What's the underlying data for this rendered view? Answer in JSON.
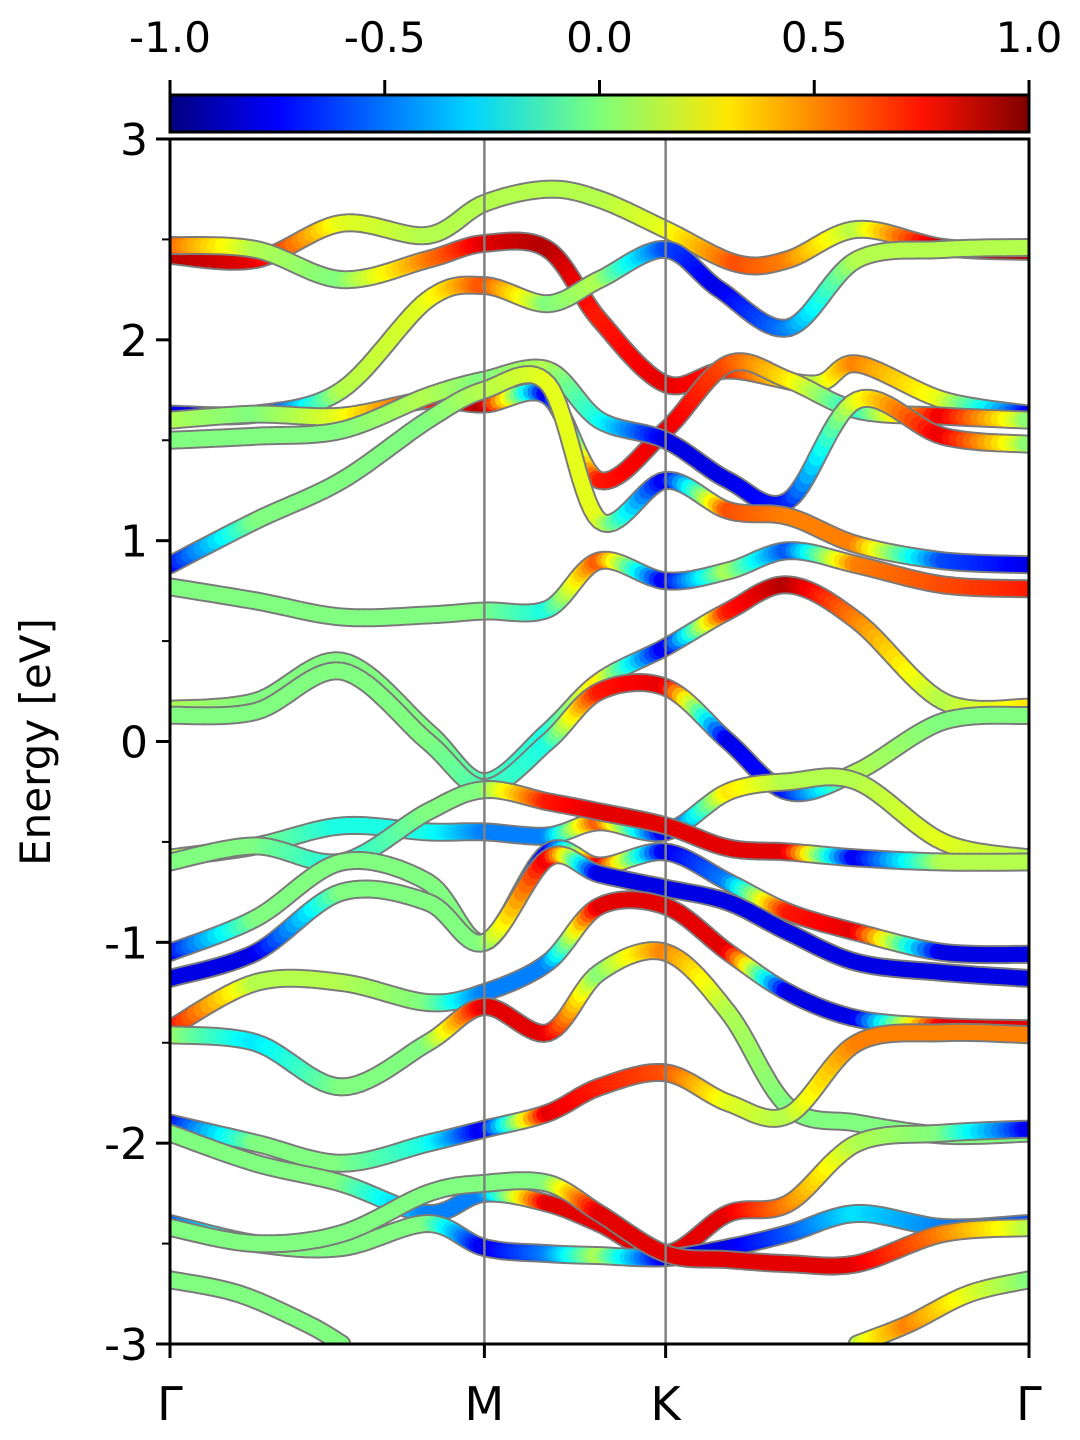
{
  "chart_data": {
    "type": "line",
    "title": "",
    "ylabel": "Energy [eV]",
    "xlabel": "",
    "ylim": [
      -3,
      3
    ],
    "yticks": [
      {
        "value": 3,
        "label": "3"
      },
      {
        "value": 2,
        "label": "2"
      },
      {
        "value": 1,
        "label": "1"
      },
      {
        "value": 0,
        "label": "0"
      },
      {
        "value": -1,
        "label": "-1"
      },
      {
        "value": -2,
        "label": "-2"
      },
      {
        "value": -3,
        "label": "-3"
      }
    ],
    "yminor": [
      2.5,
      1.5,
      0.5,
      -0.5,
      -1.5,
      -2.5
    ],
    "xrange": [
      0,
      1
    ],
    "kpoints": [
      {
        "label": "Γ",
        "x": 0.0
      },
      {
        "label": "M",
        "x": 0.366
      },
      {
        "label": "K",
        "x": 0.577
      },
      {
        "label": "Γ",
        "x": 1.0
      }
    ],
    "colorbar": {
      "range": [
        -1.0,
        1.0
      ],
      "tick_labels": [
        "-1.0",
        "-0.5",
        "0.0",
        "0.5",
        "1.0"
      ],
      "tick_values": [
        -1.0,
        -0.5,
        0.0,
        0.5,
        1.0
      ],
      "colormap": "jet",
      "placement": "top"
    },
    "grid": false,
    "series": [
      {
        "x": [
          0,
          0.1,
          0.2,
          0.3,
          0.366,
          0.44,
          0.5,
          0.577,
          0.66,
          0.72,
          0.8,
          0.9,
          1.0
        ],
        "y": [
          2.42,
          2.4,
          2.58,
          2.52,
          2.68,
          2.75,
          2.7,
          2.55,
          2.38,
          2.4,
          2.55,
          2.46,
          2.44
        ],
        "w": [
          0.9,
          0.8,
          0.2,
          0.1,
          0.1,
          0.1,
          0.1,
          0.2,
          0.6,
          0.5,
          0.1,
          0.9,
          0.9
        ]
      },
      {
        "x": [
          0,
          0.1,
          0.2,
          0.3,
          0.366,
          0.44,
          0.5,
          0.577,
          0.65,
          0.75,
          0.8,
          0.9,
          1.0
        ],
        "y": [
          2.47,
          2.45,
          2.3,
          2.4,
          2.48,
          2.45,
          2.1,
          1.78,
          1.85,
          1.78,
          1.88,
          1.7,
          1.63
        ],
        "w": [
          0.6,
          0.1,
          0.0,
          0.5,
          0.8,
          0.9,
          0.7,
          0.8,
          0.7,
          0.1,
          0.5,
          0.2,
          -0.8
        ]
      },
      {
        "x": [
          0,
          0.1,
          0.2,
          0.3,
          0.366,
          0.44,
          0.5,
          0.577,
          0.64,
          0.72,
          0.8,
          0.9,
          1.0
        ],
        "y": [
          1.63,
          1.63,
          1.75,
          2.2,
          2.27,
          2.18,
          2.3,
          2.45,
          2.25,
          2.06,
          2.4,
          2.45,
          2.46
        ],
        "w": [
          -0.8,
          -0.8,
          0.1,
          0.2,
          0.6,
          0.0,
          0.1,
          -0.6,
          -0.8,
          -0.5,
          0.1,
          0.1,
          0.1
        ]
      },
      {
        "x": [
          0,
          0.1,
          0.2,
          0.3,
          0.366,
          0.44,
          0.5,
          0.577,
          0.65,
          0.72,
          0.8,
          0.9,
          1.0
        ],
        "y": [
          1.6,
          1.63,
          1.62,
          1.7,
          1.68,
          1.72,
          1.3,
          1.55,
          1.88,
          1.8,
          1.65,
          1.62,
          1.6
        ],
        "w": [
          0.1,
          0.0,
          0.2,
          0.7,
          0.9,
          -0.8,
          0.7,
          0.8,
          0.6,
          0.3,
          -0.2,
          0.8,
          0.0
        ]
      },
      {
        "x": [
          0,
          0.1,
          0.2,
          0.3,
          0.366,
          0.44,
          0.5,
          0.577,
          0.65,
          0.72,
          0.8,
          0.9,
          1.0
        ],
        "y": [
          1.5,
          1.52,
          1.55,
          1.72,
          1.8,
          1.85,
          1.6,
          1.5,
          1.3,
          1.2,
          1.7,
          1.52,
          1.48
        ],
        "w": [
          0.0,
          0.0,
          0.0,
          0.1,
          0.0,
          0.1,
          -0.2,
          -0.8,
          -0.8,
          -0.7,
          0.2,
          0.8,
          0.0
        ]
      },
      {
        "x": [
          0,
          0.1,
          0.2,
          0.3,
          0.366,
          0.44,
          0.5,
          0.577,
          0.65,
          0.72,
          0.8,
          0.9,
          1.0
        ],
        "y": [
          0.88,
          1.1,
          1.3,
          1.6,
          1.75,
          1.78,
          1.1,
          1.3,
          1.15,
          1.12,
          0.98,
          0.9,
          0.88
        ],
        "w": [
          -0.8,
          0.0,
          0.0,
          0.0,
          0.1,
          0.2,
          0.2,
          -0.8,
          0.6,
          0.5,
          0.5,
          -0.6,
          -0.8
        ]
      },
      {
        "x": [
          0,
          0.1,
          0.2,
          0.3,
          0.366,
          0.44,
          0.5,
          0.577,
          0.65,
          0.72,
          0.8,
          0.9,
          1.0
        ],
        "y": [
          0.77,
          0.7,
          0.62,
          0.63,
          0.65,
          0.66,
          0.9,
          0.8,
          0.85,
          0.95,
          0.88,
          0.78,
          0.76
        ],
        "w": [
          0.0,
          0.0,
          0.0,
          0.0,
          0.0,
          -0.2,
          0.6,
          -0.8,
          0.1,
          -0.6,
          0.5,
          0.6,
          0.7
        ]
      },
      {
        "x": [
          0,
          0.1,
          0.2,
          0.3,
          0.366,
          0.44,
          0.5,
          0.577,
          0.65,
          0.72,
          0.8,
          0.9,
          1.0
        ],
        "y": [
          0.16,
          0.2,
          0.4,
          0.05,
          -0.2,
          0.05,
          0.3,
          0.47,
          0.65,
          0.78,
          0.6,
          0.2,
          0.17
        ],
        "w": [
          0.1,
          0.0,
          0.0,
          0.0,
          -0.1,
          -0.2,
          0.3,
          -0.8,
          0.7,
          0.9,
          0.5,
          0.1,
          0.3
        ]
      },
      {
        "x": [
          0,
          0.1,
          0.2,
          0.3,
          0.366,
          0.44,
          0.5,
          0.577,
          0.65,
          0.72,
          0.8,
          0.9,
          1.0
        ],
        "y": [
          0.13,
          0.15,
          0.35,
          0.0,
          -0.23,
          0.0,
          0.25,
          0.27,
          0.0,
          -0.25,
          -0.15,
          0.1,
          0.13
        ],
        "w": [
          0.0,
          0.0,
          0.0,
          0.0,
          -0.1,
          -0.2,
          0.7,
          0.8,
          -0.8,
          -0.7,
          0.1,
          0.0,
          0.0
        ]
      },
      {
        "x": [
          0,
          0.1,
          0.2,
          0.3,
          0.366,
          0.44,
          0.5,
          0.577,
          0.65,
          0.72,
          0.8,
          0.9,
          1.0
        ],
        "y": [
          -0.58,
          -0.52,
          -0.42,
          -0.45,
          -0.45,
          -0.47,
          -0.4,
          -0.45,
          -0.25,
          -0.2,
          -0.2,
          -0.5,
          -0.58
        ],
        "w": [
          0.1,
          0.0,
          -0.2,
          -0.2,
          -0.5,
          -0.5,
          0.6,
          -0.8,
          0.3,
          0.1,
          0.1,
          0.2,
          0.1
        ]
      },
      {
        "x": [
          0,
          0.1,
          0.2,
          0.3,
          0.366,
          0.44,
          0.5,
          0.577,
          0.65,
          0.72,
          0.8,
          0.9,
          1.0
        ],
        "y": [
          -0.6,
          -0.52,
          -0.6,
          -0.35,
          -0.24,
          -0.3,
          -0.35,
          -0.42,
          -0.53,
          -0.55,
          -0.58,
          -0.6,
          -0.6
        ],
        "w": [
          0.0,
          0.0,
          -0.2,
          0.0,
          0.0,
          0.7,
          0.8,
          0.8,
          0.8,
          0.8,
          -0.8,
          0.1,
          0.1
        ]
      },
      {
        "x": [
          0,
          0.1,
          0.2,
          0.3,
          0.366,
          0.44,
          0.5,
          0.577,
          0.65,
          0.72,
          0.8,
          0.9,
          1.0
        ],
        "y": [
          -1.05,
          -0.88,
          -0.6,
          -0.7,
          -1.0,
          -0.55,
          -0.62,
          -0.55,
          -0.7,
          -0.85,
          -0.95,
          -1.05,
          -1.06
        ],
        "w": [
          -0.8,
          0.0,
          0.0,
          0.0,
          0.0,
          -0.8,
          0.8,
          -0.8,
          -0.5,
          0.7,
          0.8,
          -0.8,
          -0.8
        ]
      },
      {
        "x": [
          0,
          0.1,
          0.2,
          0.3,
          0.366,
          0.44,
          0.5,
          0.577,
          0.65,
          0.72,
          0.8,
          0.9,
          1.0
        ],
        "y": [
          -1.18,
          -1.05,
          -0.75,
          -0.8,
          -1.0,
          -0.58,
          -0.66,
          -0.73,
          -0.8,
          -0.95,
          -1.1,
          -1.15,
          -1.18
        ],
        "w": [
          -0.8,
          -0.8,
          0.0,
          0.0,
          0.0,
          0.8,
          -0.8,
          -0.8,
          -0.8,
          -0.8,
          -0.8,
          -0.8,
          -0.8
        ]
      },
      {
        "x": [
          0,
          0.1,
          0.2,
          0.3,
          0.366,
          0.44,
          0.5,
          0.577,
          0.65,
          0.72,
          0.8,
          0.9,
          1.0
        ],
        "y": [
          -1.43,
          -1.2,
          -1.2,
          -1.3,
          -1.25,
          -1.1,
          -0.82,
          -0.82,
          -1.05,
          -1.25,
          -1.38,
          -1.42,
          -1.43
        ],
        "w": [
          0.8,
          0.1,
          0.1,
          0.0,
          -0.5,
          -0.5,
          0.8,
          0.8,
          0.8,
          -0.8,
          -0.8,
          0.8,
          0.8
        ]
      },
      {
        "x": [
          0,
          0.1,
          0.2,
          0.3,
          0.366,
          0.44,
          0.5,
          0.577,
          0.65,
          0.72,
          0.8,
          0.9,
          1.0
        ],
        "y": [
          -1.46,
          -1.5,
          -1.72,
          -1.5,
          -1.32,
          -1.45,
          -1.15,
          -1.05,
          -1.35,
          -1.82,
          -1.9,
          -1.96,
          -1.95
        ],
        "w": [
          0.1,
          -0.3,
          0.0,
          0.0,
          0.8,
          0.8,
          0.0,
          0.5,
          0.1,
          0.0,
          0.0,
          0.0,
          0.0
        ]
      },
      {
        "x": [
          0,
          0.1,
          0.2,
          0.3,
          0.366,
          0.44,
          0.5,
          0.577,
          0.65,
          0.72,
          0.8,
          0.9,
          1.0
        ],
        "y": [
          -1.9,
          -2.0,
          -2.1,
          -2.0,
          -1.93,
          -1.85,
          -1.72,
          -1.65,
          -1.8,
          -1.86,
          -1.5,
          -1.45,
          -1.46
        ],
        "w": [
          -0.8,
          0.0,
          0.0,
          -0.2,
          -0.8,
          0.8,
          0.7,
          0.6,
          0.2,
          0.1,
          0.5,
          0.5,
          0.5
        ]
      },
      {
        "x": [
          0,
          0.1,
          0.2,
          0.3,
          0.366,
          0.44,
          0.5,
          0.577,
          0.65,
          0.72,
          0.8,
          0.9,
          1.0
        ],
        "y": [
          -1.95,
          -2.1,
          -2.2,
          -2.35,
          -2.25,
          -2.3,
          -2.4,
          -2.55,
          -2.35,
          -2.3,
          -2.0,
          -1.95,
          -1.93
        ],
        "w": [
          0.0,
          0.0,
          0.0,
          -0.5,
          -0.5,
          0.8,
          0.8,
          0.8,
          0.8,
          0.5,
          0.1,
          0.0,
          -0.8
        ]
      },
      {
        "x": [
          0,
          0.1,
          0.2,
          0.3,
          0.366,
          0.44,
          0.5,
          0.577,
          0.65,
          0.72,
          0.8,
          0.9,
          1.0
        ],
        "y": [
          -2.4,
          -2.5,
          -2.52,
          -2.4,
          -2.52,
          -2.55,
          -2.56,
          -2.57,
          -2.52,
          -2.45,
          -2.35,
          -2.42,
          -2.4
        ],
        "w": [
          -0.6,
          0.0,
          0.0,
          0.0,
          -0.8,
          -0.5,
          0.1,
          -0.8,
          -0.8,
          -0.6,
          -0.3,
          -0.5,
          -0.6
        ]
      },
      {
        "x": [
          0,
          0.1,
          0.2,
          0.3,
          0.366,
          0.44,
          0.5,
          0.577,
          0.65,
          0.72,
          0.8,
          0.9,
          1.0
        ],
        "y": [
          -2.42,
          -2.5,
          -2.45,
          -2.25,
          -2.2,
          -2.2,
          -2.35,
          -2.55,
          -2.58,
          -2.6,
          -2.6,
          -2.45,
          -2.42
        ],
        "w": [
          0.0,
          0.0,
          0.0,
          0.0,
          0.0,
          0.0,
          0.8,
          0.8,
          0.8,
          0.8,
          0.8,
          0.5,
          0.1
        ]
      },
      {
        "x": [
          0,
          0.08,
          0.16,
          0.2
        ],
        "y": [
          -2.68,
          -2.75,
          -2.9,
          -3.0
        ],
        "w": [
          0.0,
          0.0,
          0.0,
          0.0
        ]
      },
      {
        "x": [
          0.8,
          0.86,
          0.93,
          1.0
        ],
        "y": [
          -3.0,
          -2.9,
          -2.75,
          -2.68
        ],
        "w": [
          0.1,
          0.5,
          0.2,
          0.0
        ]
      }
    ]
  }
}
